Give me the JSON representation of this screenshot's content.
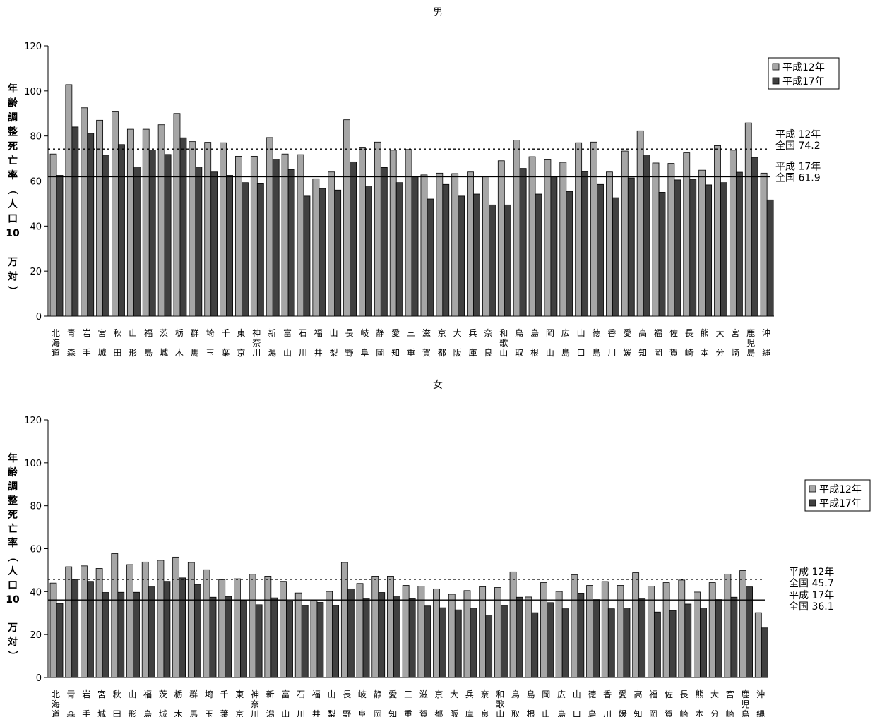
{
  "charts": [
    {
      "type": "bar",
      "title": "男",
      "ylabel": "年齢調整死亡率（人口10万対）",
      "ylim": [
        0,
        120
      ],
      "yticks": [
        "0",
        "20",
        "40",
        "60",
        "80",
        "100",
        "120"
      ],
      "categories": [
        "北海道",
        "青森",
        "岩手",
        "宮城",
        "秋田",
        "山形",
        "福島",
        "茨城",
        "栃木",
        "群馬",
        "埼玉",
        "千葉",
        "東京",
        "神奈川",
        "新潟",
        "富山",
        "石川",
        "福井",
        "山梨",
        "長野",
        "岐阜",
        "静岡",
        "愛知",
        "三重",
        "滋賀",
        "京都",
        "大阪",
        "兵庫",
        "奈良",
        "和歌山",
        "鳥取",
        "島根",
        "岡山",
        "広島",
        "山口",
        "徳島",
        "香川",
        "愛媛",
        "高知",
        "福岡",
        "佐賀",
        "長崎",
        "熊本",
        "大分",
        "宮崎",
        "鹿児島",
        "沖縄"
      ],
      "series": [
        {
          "name": "平成12年",
          "color": "#a6a6a6",
          "values": [
            72.0,
            102.8,
            92.5,
            87.0,
            91.0,
            83.0,
            83.0,
            85.0,
            90.0,
            77.5,
            77.2,
            77.0,
            71.0,
            71.0,
            79.3,
            72.0,
            71.7,
            61.0,
            64.0,
            87.2,
            74.7,
            77.3,
            73.7,
            74.0,
            62.7,
            63.5,
            63.3,
            64.0,
            61.9,
            69.0,
            78.2,
            70.8,
            69.4,
            68.3,
            77.0,
            77.3,
            64.0,
            73.3,
            82.3,
            68.0,
            67.8,
            72.5,
            64.8,
            75.7,
            73.7,
            85.8,
            63.5
          ]
        },
        {
          "name": "平成17年",
          "color": "#404040",
          "values": [
            62.5,
            84.0,
            81.2,
            71.5,
            76.2,
            66.3,
            73.8,
            71.8,
            79.2,
            66.2,
            64.0,
            62.5,
            59.3,
            58.8,
            69.7,
            65.1,
            53.3,
            56.7,
            56.0,
            68.5,
            57.8,
            66.0,
            59.3,
            62.0,
            52.0,
            58.5,
            53.3,
            54.2,
            49.4,
            49.4,
            65.6,
            54.2,
            62.0,
            55.4,
            64.2,
            58.5,
            52.6,
            61.4,
            71.6,
            55.0,
            60.5,
            60.8,
            58.3,
            59.3,
            63.9,
            70.5,
            51.6
          ]
        }
      ],
      "reference_lines": [
        {
          "value": 74.2,
          "style": "dotted",
          "label_line1": "平成 12年",
          "label_line2": "全国 74.2"
        },
        {
          "value": 61.9,
          "style": "solid",
          "label_line1": "平成 17年",
          "label_line2": "全国 61.9"
        }
      ],
      "legend": [
        "平成12年",
        "平成17年"
      ],
      "legend_position": "top-right",
      "grid": false
    },
    {
      "type": "bar",
      "title": "女",
      "ylabel": "年齢調整死亡率（人口10万対）",
      "ylim": [
        0,
        120
      ],
      "yticks": [
        "0",
        "20",
        "40",
        "60",
        "80",
        "100",
        "120"
      ],
      "categories": [
        "北海道",
        "青森",
        "岩手",
        "宮城",
        "秋田",
        "山形",
        "福島",
        "茨城",
        "栃木",
        "群馬",
        "埼玉",
        "千葉",
        "東京",
        "神奈川",
        "新潟",
        "富山",
        "石川",
        "福井",
        "山梨",
        "長野",
        "岐阜",
        "静岡",
        "愛知",
        "三重",
        "滋賀",
        "京都",
        "大阪",
        "兵庫",
        "奈良",
        "和歌山",
        "鳥取",
        "島根",
        "岡山",
        "広島",
        "山口",
        "徳島",
        "香川",
        "愛媛",
        "高知",
        "福岡",
        "佐賀",
        "長崎",
        "熊本",
        "大分",
        "宮崎",
        "鹿児島",
        "沖縄"
      ],
      "series": [
        {
          "name": "平成12年",
          "color": "#a6a6a6",
          "values": [
            44.0,
            51.6,
            52.0,
            50.8,
            57.7,
            52.6,
            53.8,
            54.6,
            56.1,
            53.6,
            50.2,
            45.6,
            46.0,
            48.1,
            47.2,
            44.8,
            39.4,
            35.8,
            40.1,
            53.6,
            43.8,
            47.2,
            47.2,
            42.9,
            42.6,
            41.3,
            38.8,
            40.5,
            42.3,
            41.9,
            49.2,
            37.5,
            44.2,
            40.1,
            47.8,
            42.9,
            44.7,
            42.9,
            48.8,
            42.6,
            44.2,
            45.4,
            39.8,
            44.2,
            48.2,
            49.8,
            30.2
          ]
        },
        {
          "name": "平成17年",
          "color": "#404040",
          "values": [
            34.5,
            45.7,
            44.8,
            39.6,
            39.7,
            39.7,
            42.2,
            44.8,
            46.4,
            43.4,
            37.4,
            37.8,
            36.0,
            33.9,
            37.1,
            35.6,
            33.6,
            35.0,
            33.6,
            41.3,
            36.9,
            39.6,
            38.0,
            36.8,
            33.3,
            32.5,
            31.5,
            32.3,
            29.1,
            33.6,
            37.4,
            30.2,
            34.9,
            32.0,
            39.3,
            36.3,
            32.0,
            32.4,
            37.0,
            30.5,
            31.2,
            34.2,
            32.4,
            36.3,
            37.4,
            42.2,
            23.1
          ]
        }
      ],
      "reference_lines": [
        {
          "value": 45.7,
          "style": "dotted",
          "label_line1": "平成 12年",
          "label_line2": "全国 45.7"
        },
        {
          "value": 36.1,
          "style": "solid",
          "label_line1": "平成 17年",
          "label_line2": "全国 36.1"
        }
      ],
      "legend": [
        "平成12年",
        "平成17年"
      ],
      "legend_position": "right",
      "grid": false
    }
  ],
  "chart_data": [
    {
      "type": "bar",
      "title": "男",
      "ylabel": "年齢調整死亡率（人口10万対）",
      "ylim": [
        0,
        120
      ],
      "categories": [
        "北海道",
        "青森",
        "岩手",
        "宮城",
        "秋田",
        "山形",
        "福島",
        "茨城",
        "栃木",
        "群馬",
        "埼玉",
        "千葉",
        "東京",
        "神奈川",
        "新潟",
        "富山",
        "石川",
        "福井",
        "山梨",
        "長野",
        "岐阜",
        "静岡",
        "愛知",
        "三重",
        "滋賀",
        "京都",
        "大阪",
        "兵庫",
        "奈良",
        "和歌山",
        "鳥取",
        "島根",
        "岡山",
        "広島",
        "山口",
        "徳島",
        "香川",
        "愛媛",
        "高知",
        "福岡",
        "佐賀",
        "長崎",
        "熊本",
        "大分",
        "宮崎",
        "鹿児島",
        "沖縄"
      ],
      "series": [
        {
          "name": "平成12年",
          "values": [
            72.0,
            102.8,
            92.5,
            87.0,
            91.0,
            83.0,
            83.0,
            85.0,
            90.0,
            77.5,
            77.2,
            77.0,
            71.0,
            71.0,
            79.3,
            72.0,
            71.7,
            61.0,
            64.0,
            87.2,
            74.7,
            77.3,
            73.7,
            74.0,
            62.7,
            63.5,
            63.3,
            64.0,
            61.9,
            69.0,
            78.2,
            70.8,
            69.4,
            68.3,
            77.0,
            77.3,
            64.0,
            73.3,
            82.3,
            68.0,
            67.8,
            72.5,
            64.8,
            75.7,
            73.7,
            85.8,
            63.5
          ]
        },
        {
          "name": "平成17年",
          "values": [
            62.5,
            84.0,
            81.2,
            71.5,
            76.2,
            66.3,
            73.8,
            71.8,
            79.2,
            66.2,
            64.0,
            62.5,
            59.3,
            58.8,
            69.7,
            65.1,
            53.3,
            56.7,
            56.0,
            68.5,
            57.8,
            66.0,
            59.3,
            62.0,
            52.0,
            58.5,
            53.3,
            54.2,
            49.4,
            49.4,
            65.6,
            54.2,
            62.0,
            55.4,
            64.2,
            58.5,
            52.6,
            61.4,
            71.6,
            55.0,
            60.5,
            60.8,
            58.3,
            59.3,
            63.9,
            70.5,
            51.6
          ]
        }
      ],
      "national_averages": {
        "平成12年": 74.2,
        "平成17年": 61.9
      }
    },
    {
      "type": "bar",
      "title": "女",
      "ylabel": "年齢調整死亡率（人口10万対）",
      "ylim": [
        0,
        120
      ],
      "categories": [
        "北海道",
        "青森",
        "岩手",
        "宮城",
        "秋田",
        "山形",
        "福島",
        "茨城",
        "栃木",
        "群馬",
        "埼玉",
        "千葉",
        "東京",
        "神奈川",
        "新潟",
        "富山",
        "石川",
        "福井",
        "山梨",
        "長野",
        "岐阜",
        "静岡",
        "愛知",
        "三重",
        "滋賀",
        "京都",
        "大阪",
        "兵庫",
        "奈良",
        "和歌山",
        "鳥取",
        "島根",
        "岡山",
        "広島",
        "山口",
        "徳島",
        "香川",
        "愛媛",
        "高知",
        "福岡",
        "佐賀",
        "長崎",
        "熊本",
        "大分",
        "宮崎",
        "鹿児島",
        "沖縄"
      ],
      "series": [
        {
          "name": "平成12年",
          "values": [
            44.0,
            51.6,
            52.0,
            50.8,
            57.7,
            52.6,
            53.8,
            54.6,
            56.1,
            53.6,
            50.2,
            45.6,
            46.0,
            48.1,
            47.2,
            44.8,
            39.4,
            35.8,
            40.1,
            53.6,
            43.8,
            47.2,
            47.2,
            42.9,
            42.6,
            41.3,
            38.8,
            40.5,
            42.3,
            41.9,
            49.2,
            37.5,
            44.2,
            40.1,
            47.8,
            42.9,
            44.7,
            42.9,
            48.8,
            42.6,
            44.2,
            45.4,
            39.8,
            44.2,
            48.2,
            49.8,
            30.2
          ]
        },
        {
          "name": "平成17年",
          "values": [
            34.5,
            45.7,
            44.8,
            39.6,
            39.7,
            39.7,
            42.2,
            44.8,
            46.4,
            43.4,
            37.4,
            37.8,
            36.0,
            33.9,
            37.1,
            35.6,
            33.6,
            35.0,
            33.6,
            41.3,
            36.9,
            39.6,
            38.0,
            36.8,
            33.3,
            32.5,
            31.5,
            32.3,
            29.1,
            33.6,
            37.4,
            30.2,
            34.9,
            32.0,
            39.3,
            36.3,
            32.0,
            32.4,
            37.0,
            30.5,
            31.2,
            34.2,
            32.4,
            36.3,
            37.4,
            42.2,
            23.1
          ]
        }
      ],
      "national_averages": {
        "平成12年": 45.7,
        "平成17年": 36.1
      }
    }
  ]
}
